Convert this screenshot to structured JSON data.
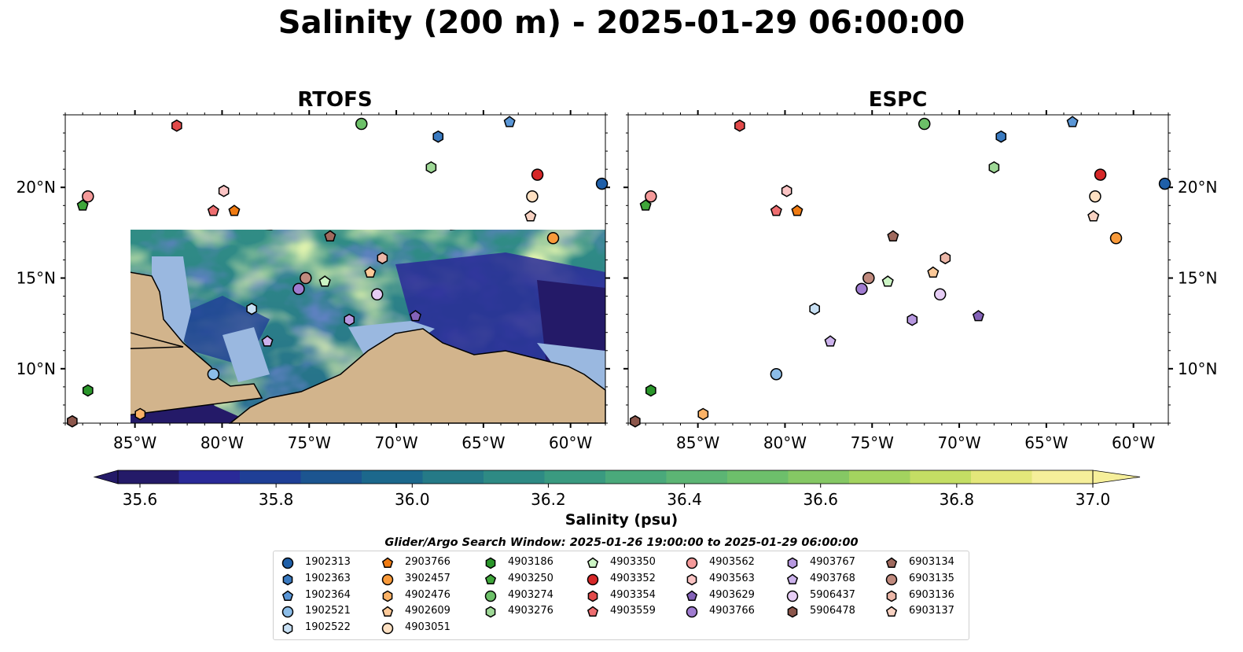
{
  "figure": {
    "title": "Salinity (200 m) - 2025-01-29 06:00:00",
    "panels": [
      "RTOFS",
      "ESPC"
    ],
    "colorbar_label": "Salinity (psu)",
    "search_window": "Glider/Argo Search Window: 2025-01-26 19:00:00 to 2025-01-29 06:00:00"
  },
  "chart_data": {
    "type": "heatmap",
    "title": "Salinity (200 m) - 2025-01-29 06:00:00",
    "subplots": [
      "RTOFS",
      "ESPC"
    ],
    "x_ticks": [
      "85°W",
      "80°W",
      "75°W",
      "70°W",
      "65°W",
      "60°W"
    ],
    "x_tick_values": [
      -85,
      -80,
      -75,
      -70,
      -65,
      -60
    ],
    "y_ticks": [
      "10°N",
      "15°N",
      "20°N"
    ],
    "y_tick_values": [
      10,
      15,
      20
    ],
    "xlim": [
      -89,
      -58
    ],
    "ylim": [
      7,
      24
    ],
    "colorbar": {
      "label": "Salinity (psu)",
      "range": [
        35.6,
        37.0
      ],
      "ticks": [
        "35.6",
        "35.8",
        "36.0",
        "36.2",
        "36.4",
        "36.6",
        "36.8",
        "37.0"
      ],
      "tick_values": [
        35.6,
        35.8,
        36.0,
        36.2,
        36.4,
        36.6,
        36.8,
        37.0
      ],
      "extend": "both",
      "colors": [
        "#241a68",
        "#2a2a98",
        "#1f3f96",
        "#1c5590",
        "#1c688c",
        "#257a87",
        "#2e8a84",
        "#3a9a80",
        "#4aa97b",
        "#5cb574",
        "#6dbf6b",
        "#85c864",
        "#a3d35f",
        "#c4de64",
        "#e4e77a",
        "#f6ef9a"
      ]
    },
    "legend_columns": [
      [
        {
          "id": "1902313",
          "marker": "circle",
          "color": "#1f5fa8"
        },
        {
          "id": "1902363",
          "marker": "hexagon",
          "color": "#3a7ac0"
        },
        {
          "id": "1902364",
          "marker": "pentagon",
          "color": "#5a96d6"
        },
        {
          "id": "1902521",
          "marker": "circle",
          "color": "#8cbde8"
        },
        {
          "id": "1902522",
          "marker": "hexagon",
          "color": "#c8e0f4"
        }
      ],
      [
        {
          "id": "2903766",
          "marker": "pentagon",
          "color": "#f07b12"
        },
        {
          "id": "3902457",
          "marker": "circle",
          "color": "#f99a3a"
        },
        {
          "id": "4902476",
          "marker": "hexagon",
          "color": "#fbb266"
        },
        {
          "id": "4902609",
          "marker": "pentagon",
          "color": "#fcc998"
        },
        {
          "id": "4903051",
          "marker": "circle",
          "color": "#fde0c2"
        }
      ],
      [
        {
          "id": "4903186",
          "marker": "hexagon",
          "color": "#2a962a"
        },
        {
          "id": "4903250",
          "marker": "pentagon",
          "color": "#3fa63a"
        },
        {
          "id": "4903274",
          "marker": "circle",
          "color": "#6cc068"
        },
        {
          "id": "4903276",
          "marker": "hexagon",
          "color": "#9ed896"
        }
      ],
      [
        {
          "id": "4903350",
          "marker": "pentagon",
          "color": "#ccf5c4"
        },
        {
          "id": "4903352",
          "marker": "circle",
          "color": "#d62728"
        },
        {
          "id": "4903354",
          "marker": "hexagon",
          "color": "#e24a4a"
        },
        {
          "id": "4903559",
          "marker": "pentagon",
          "color": "#ee6e70"
        }
      ],
      [
        {
          "id": "4903562",
          "marker": "circle",
          "color": "#f59a9a"
        },
        {
          "id": "4903563",
          "marker": "hexagon",
          "color": "#fbc4c4"
        },
        {
          "id": "4903629",
          "marker": "pentagon",
          "color": "#8462b8"
        },
        {
          "id": "4903766",
          "marker": "circle",
          "color": "#a07cd0"
        }
      ],
      [
        {
          "id": "4903767",
          "marker": "hexagon",
          "color": "#b798e0"
        },
        {
          "id": "4903768",
          "marker": "pentagon",
          "color": "#ccb2ec"
        },
        {
          "id": "5906437",
          "marker": "circle",
          "color": "#e6cdf5"
        },
        {
          "id": "5906478",
          "marker": "hexagon",
          "color": "#8c564b"
        }
      ],
      [
        {
          "id": "6903134",
          "marker": "pentagon",
          "color": "#a06a5e"
        },
        {
          "id": "6903135",
          "marker": "circle",
          "color": "#c08a7e"
        },
        {
          "id": "6903136",
          "marker": "hexagon",
          "color": "#ecb7a8"
        },
        {
          "id": "6903137",
          "marker": "pentagon",
          "color": "#f8d2c2"
        }
      ]
    ],
    "floats": [
      {
        "id": "1902313",
        "lon": -58.2,
        "lat": 20.2
      },
      {
        "id": "1902363",
        "lon": -67.6,
        "lat": 22.8
      },
      {
        "id": "1902364",
        "lon": -63.5,
        "lat": 23.6
      },
      {
        "id": "1902521",
        "lon": -80.5,
        "lat": 9.7
      },
      {
        "id": "1902522",
        "lon": -78.3,
        "lat": 13.3
      },
      {
        "id": "2903766",
        "lon": -79.3,
        "lat": 18.7
      },
      {
        "id": "3902457",
        "lon": -61.0,
        "lat": 17.2
      },
      {
        "id": "4902476",
        "lon": -84.7,
        "lat": 7.5
      },
      {
        "id": "4902609",
        "lon": -71.5,
        "lat": 15.3
      },
      {
        "id": "4903051",
        "lon": -62.2,
        "lat": 19.5
      },
      {
        "id": "4903186",
        "lon": -87.7,
        "lat": 8.8
      },
      {
        "id": "4903250",
        "lon": -88.0,
        "lat": 19.0
      },
      {
        "id": "4903274",
        "lon": -72.0,
        "lat": 23.5
      },
      {
        "id": "4903276",
        "lon": -68.0,
        "lat": 21.1
      },
      {
        "id": "4903350",
        "lon": -74.1,
        "lat": 14.8
      },
      {
        "id": "4903352",
        "lon": -61.9,
        "lat": 20.7
      },
      {
        "id": "4903354",
        "lon": -82.6,
        "lat": 23.4
      },
      {
        "id": "4903559",
        "lon": -80.5,
        "lat": 18.7
      },
      {
        "id": "4903562",
        "lon": -87.7,
        "lat": 19.5
      },
      {
        "id": "4903563",
        "lon": -79.9,
        "lat": 19.8
      },
      {
        "id": "4903629",
        "lon": -68.9,
        "lat": 12.9
      },
      {
        "id": "4903766",
        "lon": -75.6,
        "lat": 14.4
      },
      {
        "id": "4903767",
        "lon": -72.7,
        "lat": 12.7
      },
      {
        "id": "4903768",
        "lon": -77.4,
        "lat": 11.5
      },
      {
        "id": "5906437",
        "lon": -71.1,
        "lat": 14.1
      },
      {
        "id": "5906478",
        "lon": -88.6,
        "lat": 7.1
      },
      {
        "id": "6903134",
        "lon": -73.8,
        "lat": 17.3
      },
      {
        "id": "6903135",
        "lon": -75.2,
        "lat": 15.0
      },
      {
        "id": "6903136",
        "lon": -70.8,
        "lat": 16.1
      },
      {
        "id": "6903137",
        "lon": -62.3,
        "lat": 18.4
      }
    ]
  }
}
